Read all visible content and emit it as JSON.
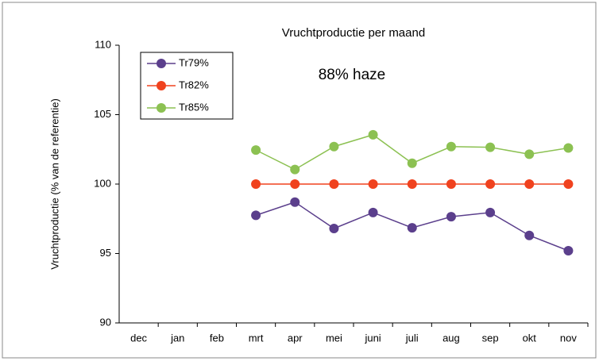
{
  "chart_data": {
    "type": "line",
    "title": "Vruchtproductie per maand",
    "y_label": "Vruchtproductie (% van de referentie)",
    "annotation": "88% haze",
    "categories": [
      "dec",
      "jan",
      "feb",
      "mrt",
      "apr",
      "mei",
      "juni",
      "juli",
      "aug",
      "sep",
      "okt",
      "nov"
    ],
    "series": [
      {
        "name": "Tr79%",
        "color": "#5b3f8c",
        "values": [
          null,
          null,
          null,
          97.75,
          98.7,
          96.8,
          97.95,
          96.85,
          97.65,
          97.95,
          96.3,
          95.2
        ]
      },
      {
        "name": "Tr82%",
        "color": "#f0421e",
        "values": [
          null,
          null,
          null,
          100,
          100,
          100,
          100,
          100,
          100,
          100,
          100,
          100
        ]
      },
      {
        "name": "Tr85%",
        "color": "#8cc152",
        "values": [
          null,
          null,
          null,
          102.45,
          101.05,
          102.7,
          103.55,
          101.5,
          102.7,
          102.65,
          102.15,
          102.6
        ]
      }
    ],
    "ylim": [
      90,
      110
    ],
    "yticks": [
      90,
      95,
      100,
      105,
      110
    ],
    "grid": false,
    "legend": "top-left"
  }
}
